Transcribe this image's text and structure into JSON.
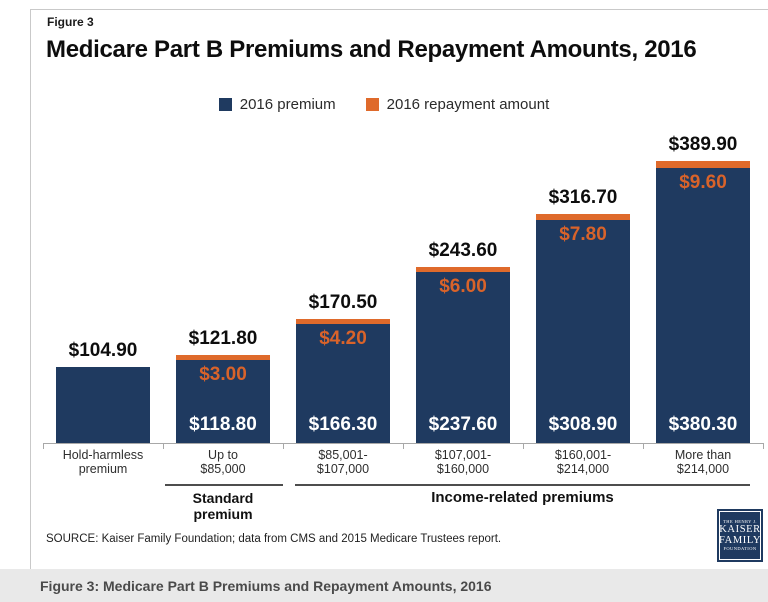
{
  "figure_label": "Figure 3",
  "title": "Medicare Part B Premiums and Repayment Amounts, 2016",
  "legend": {
    "premium_label": "2016 premium",
    "repayment_label": "2016 repayment amount"
  },
  "colors": {
    "premium_navy": "#1f3a60",
    "repayment_orange": "#df6a2b",
    "caption_bar_bg": "#e9e9e9",
    "axis_gray": "#a8a8a8"
  },
  "chart_data": {
    "type": "bar",
    "stacked": true,
    "title": "Medicare Part B Premiums and Repayment Amounts, 2016",
    "categories": [
      "Hold-harmless premium",
      "Up to $85,000",
      "$85,001-$107,000",
      "$107,001-$160,000",
      "$160,001-$214,000",
      "More than $214,000"
    ],
    "series": [
      {
        "name": "2016 premium",
        "color": "#1f3a60",
        "values": [
          104.9,
          118.8,
          166.3,
          237.6,
          308.9,
          380.3
        ]
      },
      {
        "name": "2016 repayment amount",
        "color": "#df6a2b",
        "values": [
          0,
          3.0,
          4.2,
          6.0,
          7.8,
          9.6
        ]
      }
    ],
    "totals": [
      104.9,
      121.8,
      170.5,
      243.6,
      316.7,
      389.9
    ],
    "ylim": [
      0,
      420
    ],
    "grid": false,
    "legend_position": "top",
    "group_annotations": [
      "Standard premium",
      "Income-related premiums"
    ]
  },
  "bars": [
    {
      "total": "$104.90",
      "repayment": "",
      "premium": "",
      "cat_line1": "Hold-harmless",
      "cat_line2": "premium"
    },
    {
      "total": "$121.80",
      "repayment": "$3.00",
      "premium": "$118.80",
      "cat_line1": "Up to",
      "cat_line2": "$85,000"
    },
    {
      "total": "$170.50",
      "repayment": "$4.20",
      "premium": "$166.30",
      "cat_line1": "$85,001-",
      "cat_line2": "$107,000"
    },
    {
      "total": "$243.60",
      "repayment": "$6.00",
      "premium": "$237.60",
      "cat_line1": "$107,001-",
      "cat_line2": "$160,000"
    },
    {
      "total": "$316.70",
      "repayment": "$7.80",
      "premium": "$308.90",
      "cat_line1": "$160,001-",
      "cat_line2": "$214,000"
    },
    {
      "total": "$389.90",
      "repayment": "$9.60",
      "premium": "$380.30",
      "cat_line1": "More than",
      "cat_line2": "$214,000"
    }
  ],
  "groups": {
    "standard_label": "Standard premium",
    "income_label": "Income-related premiums"
  },
  "source": "SOURCE: Kaiser Family Foundation; data from CMS and 2015 Medicare Trustees report.",
  "logo": {
    "line1": "THE HENRY J.",
    "line2": "KAISER",
    "line3": "FAMILY",
    "line4": "FOUNDATION"
  },
  "caption": "Figure 3: Medicare Part B Premiums and Repayment Amounts, 2016"
}
